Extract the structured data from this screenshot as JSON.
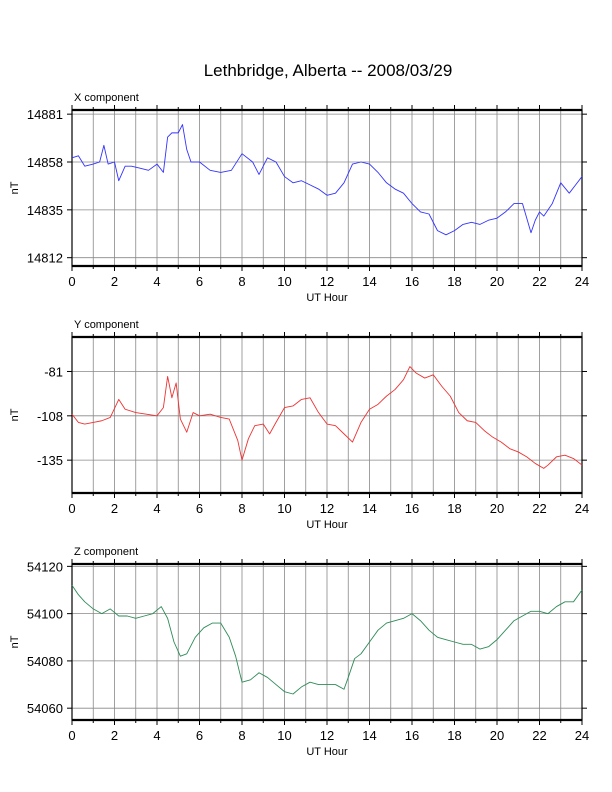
{
  "title": "Lethbridge, Alberta -- 2008/03/29",
  "chart_data": [
    {
      "type": "line",
      "component_label": "X component",
      "xlabel": "UT Hour",
      "ylabel": "nT",
      "xlim": [
        0,
        24
      ],
      "ylim": [
        14808,
        14883
      ],
      "x_ticks": [
        0,
        2,
        4,
        6,
        8,
        10,
        12,
        14,
        16,
        18,
        20,
        22,
        24
      ],
      "y_ticks": [
        14812,
        14835,
        14858,
        14881
      ],
      "grid": true,
      "color": "#3333ff",
      "series": [
        {
          "x": [
            0,
            0.3,
            0.6,
            1.0,
            1.3,
            1.5,
            1.7,
            2.0,
            2.2,
            2.5,
            2.8,
            3.2,
            3.6,
            4.0,
            4.3,
            4.5,
            4.7,
            5.0,
            5.2,
            5.4,
            5.6,
            6.0,
            6.5,
            7.0,
            7.5,
            8.0,
            8.5,
            8.8,
            9.2,
            9.6,
            10.0,
            10.4,
            10.8,
            11.2,
            11.6,
            12.0,
            12.4,
            12.8,
            13.2,
            13.6,
            14.0,
            14.4,
            14.8,
            15.2,
            15.6,
            16.0,
            16.4,
            16.8,
            17.2,
            17.6,
            18.0,
            18.4,
            18.8,
            19.2,
            19.6,
            20.0,
            20.4,
            20.8,
            21.2,
            21.6,
            21.8,
            22.0,
            22.2,
            22.6,
            23.0,
            23.4,
            23.7,
            24.0
          ],
          "y": [
            14860,
            14861,
            14856,
            14857,
            14858,
            14866,
            14857,
            14858,
            14849,
            14856,
            14856,
            14855,
            14854,
            14857,
            14853,
            14870,
            14872,
            14872,
            14876,
            14864,
            14858,
            14858,
            14854,
            14853,
            14854,
            14862,
            14858,
            14852,
            14860,
            14858,
            14851,
            14848,
            14849,
            14847,
            14845,
            14842,
            14843,
            14848,
            14857,
            14858,
            14857,
            14853,
            14848,
            14845,
            14843,
            14838,
            14834,
            14833,
            14825,
            14823,
            14825,
            14828,
            14829,
            14828,
            14830,
            14831,
            14834,
            14838,
            14838,
            14824,
            14830,
            14834,
            14832,
            14838,
            14848,
            14843,
            14847,
            14851
          ]
        }
      ]
    },
    {
      "type": "line",
      "component_label": "Y component",
      "xlabel": "UT Hour",
      "ylabel": "nT",
      "xlim": [
        0,
        24
      ],
      "ylim": [
        -155,
        -60
      ],
      "x_ticks": [
        0,
        2,
        4,
        6,
        8,
        10,
        12,
        14,
        16,
        18,
        20,
        22,
        24
      ],
      "y_ticks": [
        -81,
        -108,
        -135
      ],
      "grid": true,
      "color": "#ee3333",
      "series": [
        {
          "x": [
            0,
            0.3,
            0.6,
            1.0,
            1.4,
            1.8,
            2.2,
            2.5,
            3.0,
            3.5,
            4.0,
            4.3,
            4.5,
            4.7,
            4.9,
            5.1,
            5.4,
            5.7,
            6.0,
            6.5,
            7.0,
            7.4,
            7.8,
            8.0,
            8.3,
            8.6,
            9.0,
            9.3,
            9.6,
            10.0,
            10.4,
            10.8,
            11.2,
            11.6,
            12.0,
            12.4,
            12.8,
            13.2,
            13.6,
            14.0,
            14.4,
            14.8,
            15.2,
            15.6,
            15.9,
            16.2,
            16.6,
            17.0,
            17.4,
            17.8,
            18.2,
            18.6,
            19.0,
            19.4,
            19.8,
            20.2,
            20.6,
            21.0,
            21.4,
            21.8,
            22.2,
            22.4,
            22.8,
            23.2,
            23.6,
            24.0
          ],
          "y": [
            -107,
            -112,
            -113,
            -112,
            -111,
            -109,
            -98,
            -104,
            -106,
            -107,
            -108,
            -103,
            -84,
            -97,
            -88,
            -110,
            -118,
            -106,
            -108,
            -107,
            -109,
            -110,
            -123,
            -135,
            -122,
            -114,
            -113,
            -119,
            -112,
            -103,
            -102,
            -98,
            -97,
            -106,
            -113,
            -114,
            -119,
            -124,
            -112,
            -104,
            -101,
            -96,
            -92,
            -86,
            -78,
            -82,
            -85,
            -83,
            -90,
            -96,
            -106,
            -111,
            -112,
            -117,
            -121,
            -124,
            -128,
            -130,
            -133,
            -137,
            -140,
            -138,
            -133,
            -132,
            -134,
            -138
          ]
        }
      ]
    },
    {
      "type": "line",
      "component_label": "Z component",
      "xlabel": "UT Hour",
      "ylabel": "nT",
      "xlim": [
        0,
        24
      ],
      "ylim": [
        54055,
        54121
      ],
      "x_ticks": [
        0,
        2,
        4,
        6,
        8,
        10,
        12,
        14,
        16,
        18,
        20,
        22,
        24
      ],
      "y_ticks": [
        54060,
        54080,
        54100,
        54120
      ],
      "grid": true,
      "color": "#2e8b57",
      "series": [
        {
          "x": [
            0,
            0.3,
            0.6,
            1.0,
            1.4,
            1.8,
            2.2,
            2.6,
            3.0,
            3.4,
            3.8,
            4.2,
            4.5,
            4.8,
            5.1,
            5.4,
            5.8,
            6.2,
            6.6,
            7.0,
            7.4,
            7.7,
            8.0,
            8.4,
            8.8,
            9.2,
            9.6,
            10.0,
            10.4,
            10.8,
            11.2,
            11.6,
            12.0,
            12.4,
            12.8,
            13.0,
            13.3,
            13.6,
            14.0,
            14.4,
            14.8,
            15.2,
            15.6,
            16.0,
            16.4,
            16.8,
            17.2,
            17.6,
            18.0,
            18.4,
            18.8,
            19.2,
            19.6,
            20.0,
            20.4,
            20.8,
            21.2,
            21.6,
            22.0,
            22.4,
            22.8,
            23.2,
            23.6,
            24.0
          ],
          "y": [
            54112,
            54108,
            54105,
            54102,
            54100,
            54102,
            54099,
            54099,
            54098,
            54099,
            54100,
            54103,
            54098,
            54088,
            54082,
            54083,
            54090,
            54094,
            54096,
            54096,
            54090,
            54082,
            54071,
            54072,
            54075,
            54073,
            54070,
            54067,
            54066,
            54069,
            54071,
            54070,
            54070,
            54070,
            54068,
            54073,
            54081,
            54083,
            54088,
            54093,
            54096,
            54097,
            54098,
            54100,
            54097,
            54093,
            54090,
            54089,
            54088,
            54087,
            54087,
            54085,
            54086,
            54089,
            54093,
            54097,
            54099,
            54101,
            54101,
            54100,
            54103,
            54105,
            54105,
            54110
          ]
        }
      ]
    }
  ]
}
